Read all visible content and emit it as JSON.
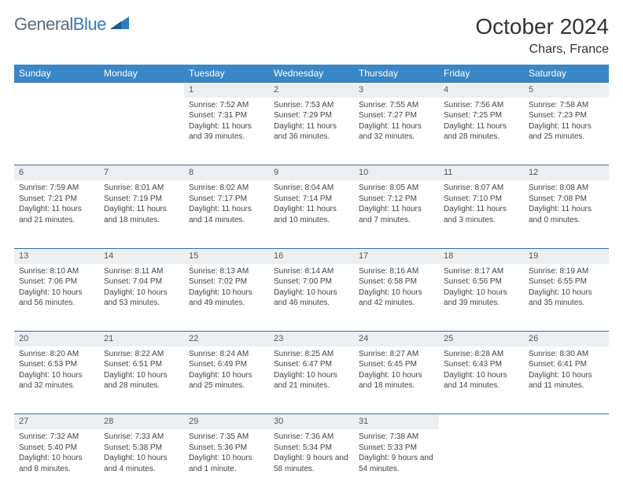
{
  "logo": {
    "text1": "General",
    "text2": "Blue"
  },
  "title": "October 2024",
  "location": "Chars, France",
  "colors": {
    "header_bg": "#3a87c7",
    "header_text": "#ffffff",
    "daynum_bg": "#eceff1",
    "border": "#2f6fa8",
    "logo_gray": "#5a6b7a",
    "logo_blue": "#2f7dc0"
  },
  "weekdays": [
    "Sunday",
    "Monday",
    "Tuesday",
    "Wednesday",
    "Thursday",
    "Friday",
    "Saturday"
  ],
  "weeks": [
    {
      "nums": [
        "",
        "",
        "1",
        "2",
        "3",
        "4",
        "5"
      ],
      "cells": [
        null,
        null,
        {
          "sunrise": "Sunrise: 7:52 AM",
          "sunset": "Sunset: 7:31 PM",
          "day": "Daylight: 11 hours and 39 minutes."
        },
        {
          "sunrise": "Sunrise: 7:53 AM",
          "sunset": "Sunset: 7:29 PM",
          "day": "Daylight: 11 hours and 36 minutes."
        },
        {
          "sunrise": "Sunrise: 7:55 AM",
          "sunset": "Sunset: 7:27 PM",
          "day": "Daylight: 11 hours and 32 minutes."
        },
        {
          "sunrise": "Sunrise: 7:56 AM",
          "sunset": "Sunset: 7:25 PM",
          "day": "Daylight: 11 hours and 28 minutes."
        },
        {
          "sunrise": "Sunrise: 7:58 AM",
          "sunset": "Sunset: 7:23 PM",
          "day": "Daylight: 11 hours and 25 minutes."
        }
      ]
    },
    {
      "nums": [
        "6",
        "7",
        "8",
        "9",
        "10",
        "11",
        "12"
      ],
      "cells": [
        {
          "sunrise": "Sunrise: 7:59 AM",
          "sunset": "Sunset: 7:21 PM",
          "day": "Daylight: 11 hours and 21 minutes."
        },
        {
          "sunrise": "Sunrise: 8:01 AM",
          "sunset": "Sunset: 7:19 PM",
          "day": "Daylight: 11 hours and 18 minutes."
        },
        {
          "sunrise": "Sunrise: 8:02 AM",
          "sunset": "Sunset: 7:17 PM",
          "day": "Daylight: 11 hours and 14 minutes."
        },
        {
          "sunrise": "Sunrise: 8:04 AM",
          "sunset": "Sunset: 7:14 PM",
          "day": "Daylight: 11 hours and 10 minutes."
        },
        {
          "sunrise": "Sunrise: 8:05 AM",
          "sunset": "Sunset: 7:12 PM",
          "day": "Daylight: 11 hours and 7 minutes."
        },
        {
          "sunrise": "Sunrise: 8:07 AM",
          "sunset": "Sunset: 7:10 PM",
          "day": "Daylight: 11 hours and 3 minutes."
        },
        {
          "sunrise": "Sunrise: 8:08 AM",
          "sunset": "Sunset: 7:08 PM",
          "day": "Daylight: 11 hours and 0 minutes."
        }
      ]
    },
    {
      "nums": [
        "13",
        "14",
        "15",
        "16",
        "17",
        "18",
        "19"
      ],
      "cells": [
        {
          "sunrise": "Sunrise: 8:10 AM",
          "sunset": "Sunset: 7:06 PM",
          "day": "Daylight: 10 hours and 56 minutes."
        },
        {
          "sunrise": "Sunrise: 8:11 AM",
          "sunset": "Sunset: 7:04 PM",
          "day": "Daylight: 10 hours and 53 minutes."
        },
        {
          "sunrise": "Sunrise: 8:13 AM",
          "sunset": "Sunset: 7:02 PM",
          "day": "Daylight: 10 hours and 49 minutes."
        },
        {
          "sunrise": "Sunrise: 8:14 AM",
          "sunset": "Sunset: 7:00 PM",
          "day": "Daylight: 10 hours and 46 minutes."
        },
        {
          "sunrise": "Sunrise: 8:16 AM",
          "sunset": "Sunset: 6:58 PM",
          "day": "Daylight: 10 hours and 42 minutes."
        },
        {
          "sunrise": "Sunrise: 8:17 AM",
          "sunset": "Sunset: 6:56 PM",
          "day": "Daylight: 10 hours and 39 minutes."
        },
        {
          "sunrise": "Sunrise: 8:19 AM",
          "sunset": "Sunset: 6:55 PM",
          "day": "Daylight: 10 hours and 35 minutes."
        }
      ]
    },
    {
      "nums": [
        "20",
        "21",
        "22",
        "23",
        "24",
        "25",
        "26"
      ],
      "cells": [
        {
          "sunrise": "Sunrise: 8:20 AM",
          "sunset": "Sunset: 6:53 PM",
          "day": "Daylight: 10 hours and 32 minutes."
        },
        {
          "sunrise": "Sunrise: 8:22 AM",
          "sunset": "Sunset: 6:51 PM",
          "day": "Daylight: 10 hours and 28 minutes."
        },
        {
          "sunrise": "Sunrise: 8:24 AM",
          "sunset": "Sunset: 6:49 PM",
          "day": "Daylight: 10 hours and 25 minutes."
        },
        {
          "sunrise": "Sunrise: 8:25 AM",
          "sunset": "Sunset: 6:47 PM",
          "day": "Daylight: 10 hours and 21 minutes."
        },
        {
          "sunrise": "Sunrise: 8:27 AM",
          "sunset": "Sunset: 6:45 PM",
          "day": "Daylight: 10 hours and 18 minutes."
        },
        {
          "sunrise": "Sunrise: 8:28 AM",
          "sunset": "Sunset: 6:43 PM",
          "day": "Daylight: 10 hours and 14 minutes."
        },
        {
          "sunrise": "Sunrise: 8:30 AM",
          "sunset": "Sunset: 6:41 PM",
          "day": "Daylight: 10 hours and 11 minutes."
        }
      ]
    },
    {
      "nums": [
        "27",
        "28",
        "29",
        "30",
        "31",
        "",
        ""
      ],
      "cells": [
        {
          "sunrise": "Sunrise: 7:32 AM",
          "sunset": "Sunset: 5:40 PM",
          "day": "Daylight: 10 hours and 8 minutes."
        },
        {
          "sunrise": "Sunrise: 7:33 AM",
          "sunset": "Sunset: 5:38 PM",
          "day": "Daylight: 10 hours and 4 minutes."
        },
        {
          "sunrise": "Sunrise: 7:35 AM",
          "sunset": "Sunset: 5:36 PM",
          "day": "Daylight: 10 hours and 1 minute."
        },
        {
          "sunrise": "Sunrise: 7:36 AM",
          "sunset": "Sunset: 5:34 PM",
          "day": "Daylight: 9 hours and 58 minutes."
        },
        {
          "sunrise": "Sunrise: 7:38 AM",
          "sunset": "Sunset: 5:33 PM",
          "day": "Daylight: 9 hours and 54 minutes."
        },
        null,
        null
      ]
    }
  ]
}
